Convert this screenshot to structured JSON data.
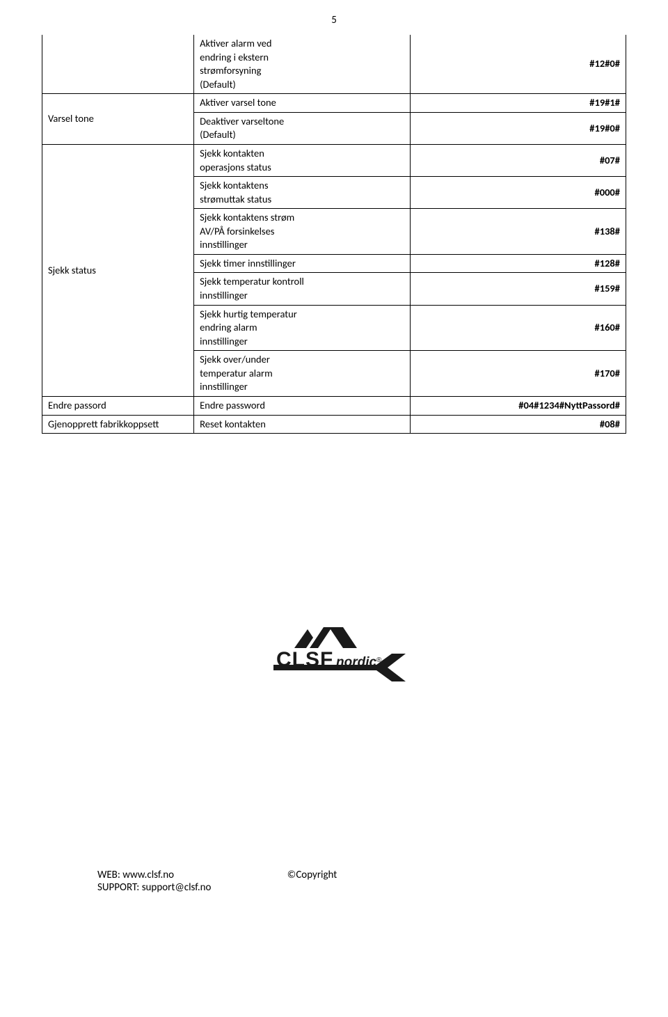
{
  "page_number": "5",
  "table": {
    "rows": [
      {
        "left": null,
        "mid": "Aktiver alarm ved\nendring i ekstern\nstrømforsyning\n(Default)",
        "right": "#12#0#",
        "noTopBorder": true
      },
      {
        "left": "Varsel tone",
        "left_rowspan": 2,
        "mid": "Aktiver varsel tone",
        "right": "#19#1#"
      },
      {
        "mid": "Deaktiver varseltone\n(Default)",
        "right": "#19#0#"
      },
      {
        "left": "Sjekk status",
        "left_rowspan": 7,
        "mid": "Sjekk kontakten\noperasjons status",
        "right": "#07#"
      },
      {
        "mid": "Sjekk  kontaktens\nstrømuttak status",
        "right": "#000#"
      },
      {
        "mid": "Sjekk kontaktens strøm\nAV/PÅ forsinkelses\ninnstillinger",
        "right": "#138#"
      },
      {
        "mid": "Sjekk timer innstillinger",
        "right": "#128#"
      },
      {
        "mid": "Sjekk temperatur kontroll\ninnstillinger",
        "right": "#159#"
      },
      {
        "mid": "Sjekk hurtig temperatur\nendring alarm\ninnstillinger",
        "right": "#160#"
      },
      {
        "mid": "Sjekk over/under\ntemperatur alarm\ninnstillinger",
        "right": "#170#"
      },
      {
        "left": "Endre passord",
        "mid": "Endre password",
        "right": "#04#1234#NyttPassord#"
      },
      {
        "left": "Gjenopprett fabrikkoppsett",
        "mid": "Reset kontakten",
        "right": "#08#"
      }
    ]
  },
  "logo": {
    "text_main": "CLSF",
    "text_sub": "nordic",
    "text_reg": "®",
    "color": "#1a1a1a"
  },
  "footer": {
    "web_label": "WEB: ",
    "web_value": "www.clsf.no",
    "support_label": "SUPPORT: ",
    "support_value": "support@clsf.no",
    "copyright": "©Copyright"
  }
}
